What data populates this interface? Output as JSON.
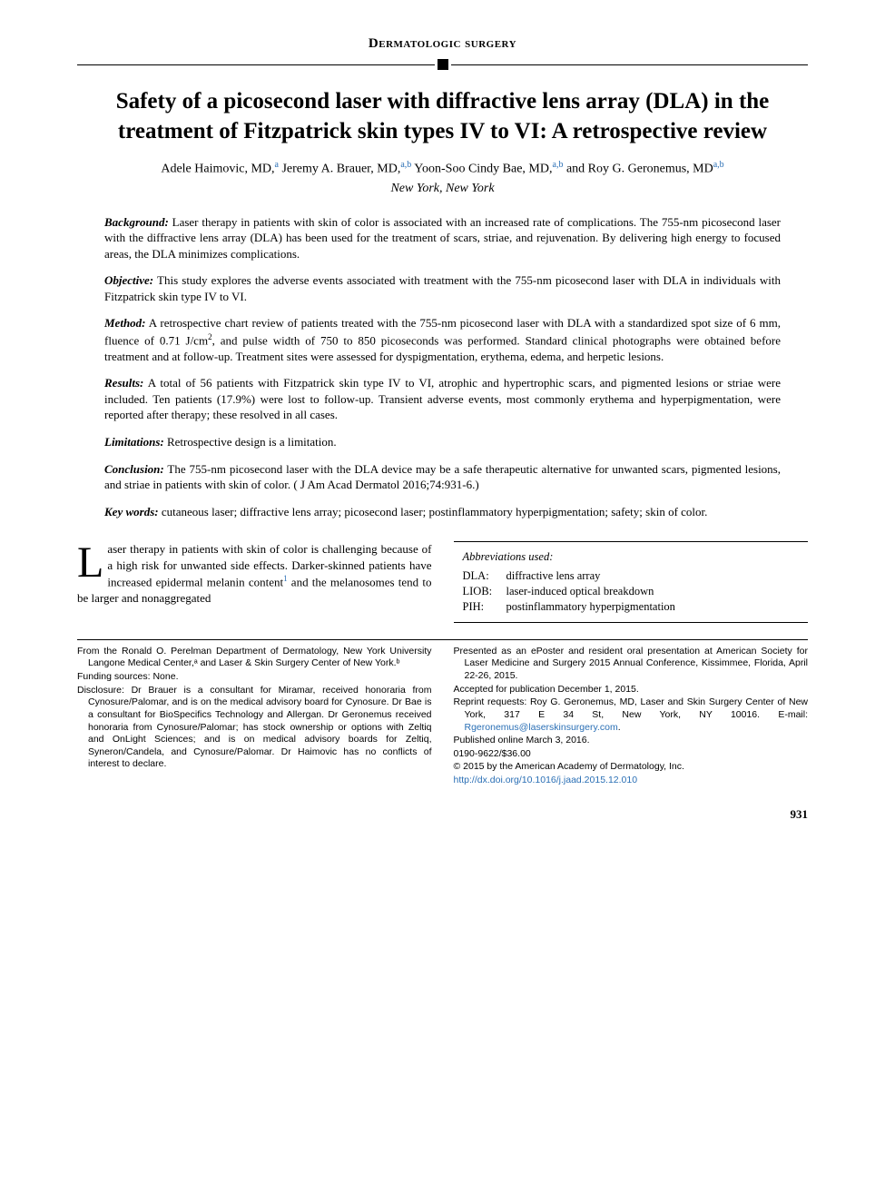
{
  "section_header": "Dermatologic surgery",
  "title": "Safety of a picosecond laser with diffractive lens array (DLA) in the treatment of Fitzpatrick skin types IV to VI: A retrospective review",
  "authors": [
    {
      "name": "Adele Haimovic, MD,",
      "affil": "a"
    },
    {
      "name": " Jeremy A. Brauer, MD,",
      "affil": "a,b"
    },
    {
      "name": " Yoon-Soo Cindy Bae, MD,",
      "affil": "a,b"
    },
    {
      "name": " and Roy G. Geronemus, MD",
      "affil": "a,b"
    }
  ],
  "location": "New York, New York",
  "abstract": {
    "background": {
      "label": "Background:",
      "text": " Laser therapy in patients with skin of color is associated with an increased rate of complications. The 755-nm picosecond laser with the diffractive lens array (DLA) has been used for the treatment of scars, striae, and rejuvenation. By delivering high energy to focused areas, the DLA minimizes complications."
    },
    "objective": {
      "label": "Objective:",
      "text": " This study explores the adverse events associated with treatment with the 755-nm picosecond laser with DLA in individuals with Fitzpatrick skin type IV to VI."
    },
    "method": {
      "label": "Method:",
      "text_pre": " A retrospective chart review of patients treated with the 755-nm picosecond laser with DLA with a standardized spot size of 6 mm, fluence of 0.71 J/cm",
      "sup": "2",
      "text_post": ", and pulse width of 750 to 850 picoseconds was performed. Standard clinical photographs were obtained before treatment and at follow-up. Treatment sites were assessed for dyspigmentation, erythema, edema, and herpetic lesions."
    },
    "results": {
      "label": "Results:",
      "text": " A total of 56 patients with Fitzpatrick skin type IV to VI, atrophic and hypertrophic scars, and pigmented lesions or striae were included. Ten patients (17.9%) were lost to follow-up. Transient adverse events, most commonly erythema and hyperpigmentation, were reported after therapy; these resolved in all cases."
    },
    "limitations": {
      "label": "Limitations:",
      "text": " Retrospective design is a limitation."
    },
    "conclusion": {
      "label": "Conclusion:",
      "text": " The 755-nm picosecond laser with the DLA device may be a safe therapeutic alternative for unwanted scars, pigmented lesions, and striae in patients with skin of color. ( J Am Acad Dermatol 2016;74:931-6.)"
    },
    "keywords": {
      "label": "Key words:",
      "text": " cutaneous laser; diffractive lens array; picosecond laser; postinflammatory hyperpigmentation; safety; skin of color."
    }
  },
  "body_text": {
    "dropcap": "L",
    "text_pre": "aser therapy in patients with skin of color is challenging because of a high risk for unwanted side effects. Darker-skinned patients have increased epidermal melanin content",
    "ref": "1",
    "text_post": " and the melanosomes tend to be larger and nonaggregated"
  },
  "abbreviations": {
    "title": "Abbreviations used:",
    "items": [
      {
        "key": "DLA:",
        "val": "diffractive lens array"
      },
      {
        "key": "LIOB:",
        "val": "laser-induced optical breakdown"
      },
      {
        "key": "PIH:",
        "val": "postinflammatory hyperpigmentation"
      }
    ]
  },
  "footnotes": {
    "left": [
      {
        "text": "From the Ronald O. Perelman Department of Dermatology, New York University Langone Medical Center,ᵃ and Laser & Skin Surgery Center of New York.ᵇ"
      },
      {
        "text": "Funding sources: None."
      },
      {
        "text": "Disclosure: Dr Brauer is a consultant for Miramar, received honoraria from Cynosure/Palomar, and is on the medical advisory board for Cynosure. Dr Bae is a consultant for BioSpecifics Technology and Allergan. Dr Geronemus received honoraria from Cynosure/Palomar; has stock ownership or options with Zeltiq and OnLight Sciences; and is on medical advisory boards for Zeltiq, Syneron/Candela, and Cynosure/Palomar. Dr Haimovic has no conflicts of interest to declare."
      }
    ],
    "right": [
      {
        "text": "Presented as an ePoster and resident oral presentation at American Society for Laser Medicine and Surgery 2015 Annual Conference, Kissimmee, Florida, April 22-26, 2015."
      },
      {
        "text": "Accepted for publication December 1, 2015."
      },
      {
        "text_pre": "Reprint requests: Roy G. Geronemus, MD, Laser and Skin Surgery Center of New York, 317 E 34 St, New York, NY 10016. E-mail: ",
        "link": "Rgeronemus@laserskinsurgery.com",
        "text_post": "."
      },
      {
        "text": "Published online March 3, 2016."
      },
      {
        "text": "0190-9622/$36.00"
      },
      {
        "text": "© 2015 by the American Academy of Dermatology, Inc."
      },
      {
        "link": "http://dx.doi.org/10.1016/j.jaad.2015.12.010"
      }
    ]
  },
  "page_number": "931",
  "colors": {
    "link": "#2a6fb5",
    "text": "#000000",
    "bg": "#ffffff"
  }
}
